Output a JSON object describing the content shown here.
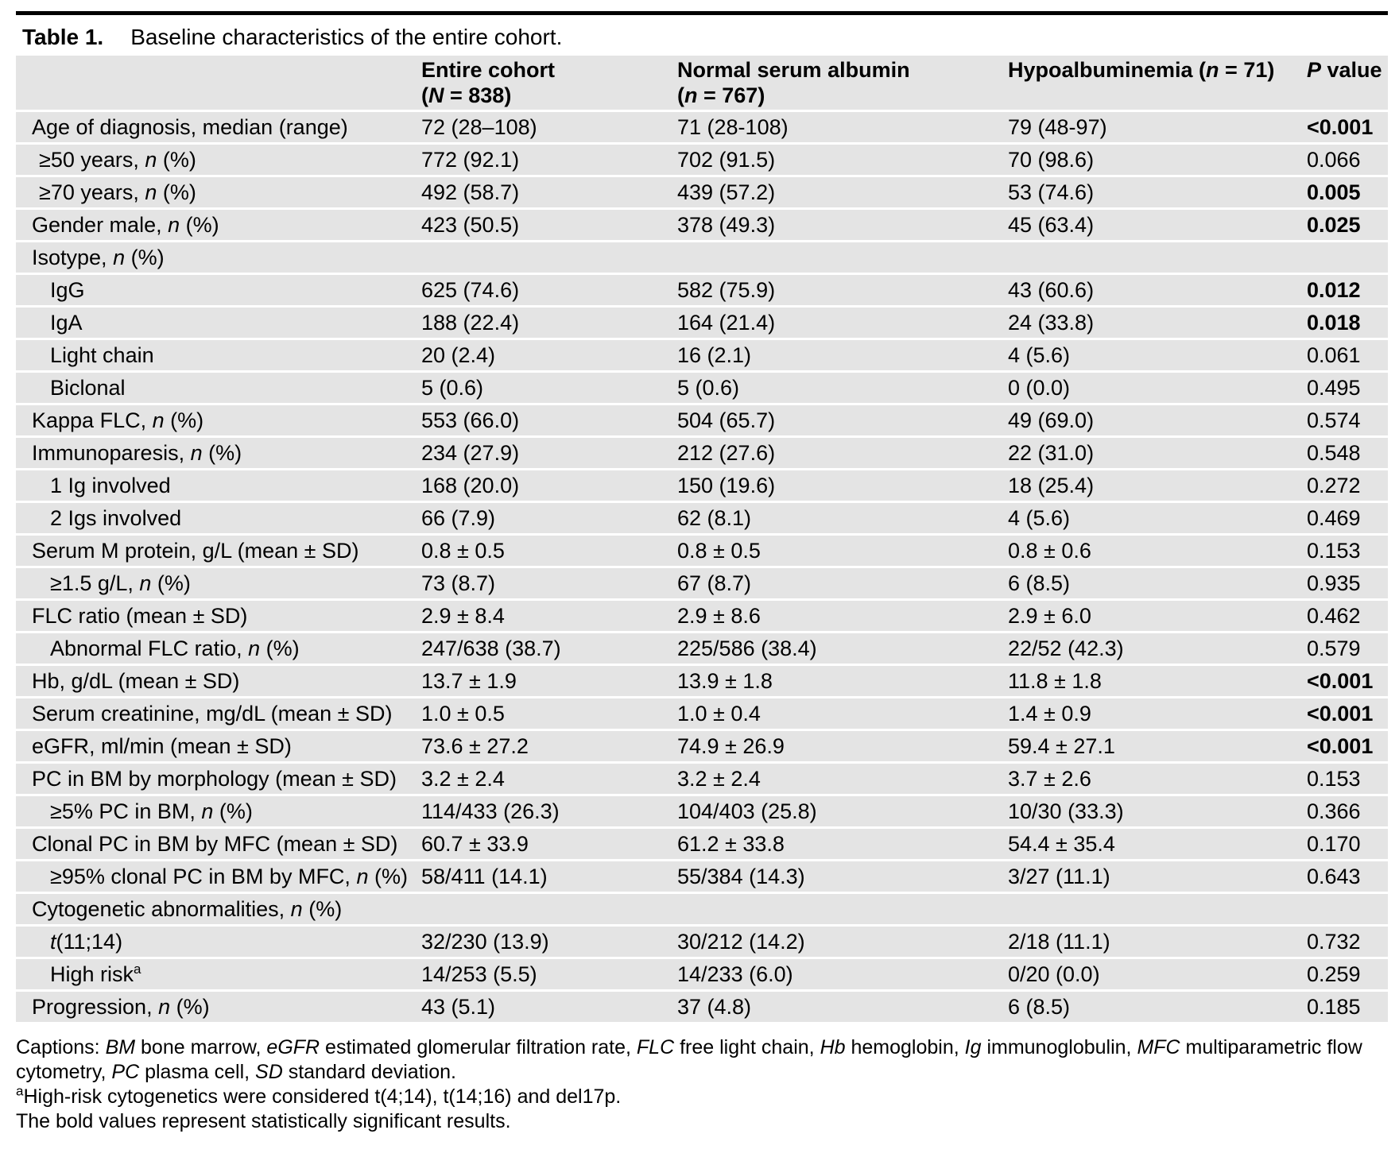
{
  "title": {
    "label": "Table 1.",
    "text": "Baseline characteristics of the entire cohort."
  },
  "colors": {
    "row_background": "#e4e4e4",
    "top_rule": "#000000",
    "text": "#000000"
  },
  "table": {
    "columns": [
      {
        "line1": [],
        "line2": []
      },
      {
        "line1": [
          [
            "Entire cohort",
            ""
          ]
        ],
        "line2": [
          [
            "(",
            ""
          ],
          [
            "N",
            "i"
          ],
          [
            " = 838)",
            ""
          ]
        ]
      },
      {
        "line1": [
          [
            "Normal serum albumin",
            ""
          ]
        ],
        "line2": [
          [
            "(",
            ""
          ],
          [
            "n",
            "i"
          ],
          [
            " = 767)",
            ""
          ]
        ]
      },
      {
        "line1": [
          [
            "Hypoalbuminemia (",
            ""
          ],
          [
            "n",
            "i"
          ],
          [
            " = 71)",
            ""
          ]
        ],
        "line2": []
      },
      {
        "line1": [
          [
            "P",
            "i"
          ],
          [
            " value",
            ""
          ]
        ],
        "line2": []
      }
    ],
    "rows": [
      {
        "label": [
          [
            "Age of diagnosis, median (range)",
            ""
          ]
        ],
        "indent": 0,
        "cells": [
          "72 (28–108)",
          "71 (28-108)",
          "79 (48-97)"
        ],
        "p": "<0.001",
        "p_bold": true
      },
      {
        "label": [
          [
            "≥50 years, ",
            ""
          ],
          [
            "n",
            "i"
          ],
          [
            " (%)",
            ""
          ]
        ],
        "indent": 1,
        "cells": [
          "772 (92.1)",
          "702 (91.5)",
          "70 (98.6)"
        ],
        "p": "0.066",
        "p_bold": false
      },
      {
        "label": [
          [
            "≥70 years, ",
            ""
          ],
          [
            "n",
            "i"
          ],
          [
            " (%)",
            ""
          ]
        ],
        "indent": 1,
        "cells": [
          "492 (58.7)",
          "439 (57.2)",
          "53 (74.6)"
        ],
        "p": "0.005",
        "p_bold": true
      },
      {
        "label": [
          [
            "Gender male, ",
            ""
          ],
          [
            "n",
            "i"
          ],
          [
            " (%)",
            ""
          ]
        ],
        "indent": 0,
        "cells": [
          "423 (50.5)",
          "378 (49.3)",
          "45 (63.4)"
        ],
        "p": "0.025",
        "p_bold": true
      },
      {
        "label": [
          [
            "Isotype, ",
            ""
          ],
          [
            "n",
            "i"
          ],
          [
            " (%)",
            ""
          ]
        ],
        "indent": 0,
        "cells": [
          "",
          "",
          ""
        ],
        "p": "",
        "p_bold": false
      },
      {
        "label": [
          [
            "IgG",
            ""
          ]
        ],
        "indent": 2,
        "cells": [
          "625 (74.6)",
          "582 (75.9)",
          "43 (60.6)"
        ],
        "p": "0.012",
        "p_bold": true
      },
      {
        "label": [
          [
            "IgA",
            ""
          ]
        ],
        "indent": 2,
        "cells": [
          "188 (22.4)",
          "164 (21.4)",
          "24 (33.8)"
        ],
        "p": "0.018",
        "p_bold": true
      },
      {
        "label": [
          [
            "Light chain",
            ""
          ]
        ],
        "indent": 2,
        "cells": [
          "20 (2.4)",
          "16 (2.1)",
          "4 (5.6)"
        ],
        "p": "0.061",
        "p_bold": false
      },
      {
        "label": [
          [
            "Biclonal",
            ""
          ]
        ],
        "indent": 2,
        "cells": [
          "5 (0.6)",
          "5 (0.6)",
          "0 (0.0)"
        ],
        "p": "0.495",
        "p_bold": false
      },
      {
        "label": [
          [
            "Kappa FLC, ",
            ""
          ],
          [
            "n",
            "i"
          ],
          [
            " (%)",
            ""
          ]
        ],
        "indent": 0,
        "cells": [
          "553 (66.0)",
          "504 (65.7)",
          "49 (69.0)"
        ],
        "p": "0.574",
        "p_bold": false
      },
      {
        "label": [
          [
            "Immunoparesis, ",
            ""
          ],
          [
            "n",
            "i"
          ],
          [
            " (%)",
            ""
          ]
        ],
        "indent": 0,
        "cells": [
          "234 (27.9)",
          "212 (27.6)",
          "22 (31.0)"
        ],
        "p": "0.548",
        "p_bold": false
      },
      {
        "label": [
          [
            "1 Ig involved",
            ""
          ]
        ],
        "indent": 2,
        "cells": [
          "168 (20.0)",
          "150 (19.6)",
          "18 (25.4)"
        ],
        "p": "0.272",
        "p_bold": false
      },
      {
        "label": [
          [
            "2 Igs involved",
            ""
          ]
        ],
        "indent": 2,
        "cells": [
          "66 (7.9)",
          "62 (8.1)",
          "4 (5.6)"
        ],
        "p": "0.469",
        "p_bold": false
      },
      {
        "label": [
          [
            "Serum M protein, g/L (mean ± SD)",
            ""
          ]
        ],
        "indent": 0,
        "cells": [
          "0.8 ± 0.5",
          "0.8 ± 0.5",
          "0.8 ± 0.6"
        ],
        "p": "0.153",
        "p_bold": false
      },
      {
        "label": [
          [
            "≥1.5 g/L, ",
            ""
          ],
          [
            "n",
            "i"
          ],
          [
            " (%)",
            ""
          ]
        ],
        "indent": 2,
        "cells": [
          "73 (8.7)",
          "67 (8.7)",
          "6 (8.5)"
        ],
        "p": "0.935",
        "p_bold": false
      },
      {
        "label": [
          [
            "FLC ratio (mean ± SD)",
            ""
          ]
        ],
        "indent": 0,
        "cells": [
          "2.9 ± 8.4",
          "2.9 ± 8.6",
          "2.9 ± 6.0"
        ],
        "p": "0.462",
        "p_bold": false
      },
      {
        "label": [
          [
            "Abnormal FLC ratio, ",
            ""
          ],
          [
            "n",
            "i"
          ],
          [
            " (%)",
            ""
          ]
        ],
        "indent": 2,
        "cells": [
          "247/638 (38.7)",
          "225/586 (38.4)",
          "22/52 (42.3)"
        ],
        "p": "0.579",
        "p_bold": false
      },
      {
        "label": [
          [
            "Hb, g/dL (mean ± SD)",
            ""
          ]
        ],
        "indent": 0,
        "cells": [
          "13.7 ± 1.9",
          "13.9 ± 1.8",
          "11.8 ± 1.8"
        ],
        "p": "<0.001",
        "p_bold": true
      },
      {
        "label": [
          [
            "Serum creatinine, mg/dL (mean ± SD)",
            ""
          ]
        ],
        "indent": 0,
        "cells": [
          "1.0 ± 0.5",
          "1.0 ± 0.4",
          "1.4 ± 0.9"
        ],
        "p": "<0.001",
        "p_bold": true
      },
      {
        "label": [
          [
            "eGFR, ml/min (mean ± SD)",
            ""
          ]
        ],
        "indent": 0,
        "cells": [
          "73.6 ± 27.2",
          "74.9 ± 26.9",
          "59.4 ± 27.1"
        ],
        "p": "<0.001",
        "p_bold": true
      },
      {
        "label": [
          [
            "PC in BM by morphology (mean ± SD)",
            ""
          ]
        ],
        "indent": 0,
        "cells": [
          "3.2 ± 2.4",
          "3.2 ± 2.4",
          "3.7 ± 2.6"
        ],
        "p": "0.153",
        "p_bold": false
      },
      {
        "label": [
          [
            "≥5% PC in BM, ",
            ""
          ],
          [
            "n",
            "i"
          ],
          [
            " (%)",
            ""
          ]
        ],
        "indent": 2,
        "cells": [
          "114/433 (26.3)",
          "104/403 (25.8)",
          "10/30 (33.3)"
        ],
        "p": "0.366",
        "p_bold": false
      },
      {
        "label": [
          [
            "Clonal PC in BM by MFC (mean ± SD)",
            ""
          ]
        ],
        "indent": 0,
        "cells": [
          "60.7 ± 33.9",
          "61.2 ± 33.8",
          "54.4 ± 35.4"
        ],
        "p": "0.170",
        "p_bold": false
      },
      {
        "label": [
          [
            "≥95% clonal PC in BM by MFC, ",
            ""
          ],
          [
            "n",
            "i"
          ],
          [
            " (%)",
            ""
          ]
        ],
        "indent": 2,
        "cells": [
          "58/411 (14.1)",
          "55/384 (14.3)",
          "3/27 (11.1)"
        ],
        "p": "0.643",
        "p_bold": false
      },
      {
        "label": [
          [
            "Cytogenetic abnormalities, ",
            ""
          ],
          [
            "n",
            "i"
          ],
          [
            " (%)",
            ""
          ]
        ],
        "indent": 0,
        "cells": [
          "",
          "",
          ""
        ],
        "p": "",
        "p_bold": false
      },
      {
        "label": [
          [
            "t",
            "i"
          ],
          [
            "(11;14)",
            ""
          ]
        ],
        "indent": 2,
        "cells": [
          "32/230 (13.9)",
          "30/212 (14.2)",
          "2/18 (11.1)"
        ],
        "p": "0.732",
        "p_bold": false
      },
      {
        "label": [
          [
            "High risk",
            ""
          ],
          [
            "a",
            "sup"
          ]
        ],
        "indent": 2,
        "cells": [
          "14/253 (5.5)",
          "14/233 (6.0)",
          "0/20 (0.0)"
        ],
        "p": "0.259",
        "p_bold": false
      },
      {
        "label": [
          [
            "Progression, ",
            ""
          ],
          [
            "n",
            "i"
          ],
          [
            " (%)",
            ""
          ]
        ],
        "indent": 0,
        "cells": [
          "43 (5.1)",
          "37 (4.8)",
          "6 (8.5)"
        ],
        "p": "0.185",
        "p_bold": false
      }
    ]
  },
  "footnotes": [
    [
      [
        "Captions: ",
        ""
      ],
      [
        "BM",
        "i"
      ],
      [
        " bone marrow, ",
        ""
      ],
      [
        "eGFR",
        "i"
      ],
      [
        " estimated glomerular filtration rate, ",
        ""
      ],
      [
        "FLC",
        "i"
      ],
      [
        " free light chain, ",
        ""
      ],
      [
        "Hb",
        "i"
      ],
      [
        " hemoglobin, ",
        ""
      ],
      [
        "Ig",
        "i"
      ],
      [
        " immunoglobulin, ",
        ""
      ],
      [
        "MFC",
        "i"
      ],
      [
        " multiparametric flow cytometry, ",
        ""
      ],
      [
        "PC",
        "i"
      ],
      [
        " plasma cell, ",
        ""
      ],
      [
        "SD",
        "i"
      ],
      [
        " standard deviation.",
        ""
      ]
    ],
    [
      [
        "a",
        "sup"
      ],
      [
        "High-risk cytogenetics were considered t(4;14), t(14;16) and del17p.",
        ""
      ]
    ],
    [
      [
        "The bold values represent statistically significant results.",
        ""
      ]
    ]
  ]
}
